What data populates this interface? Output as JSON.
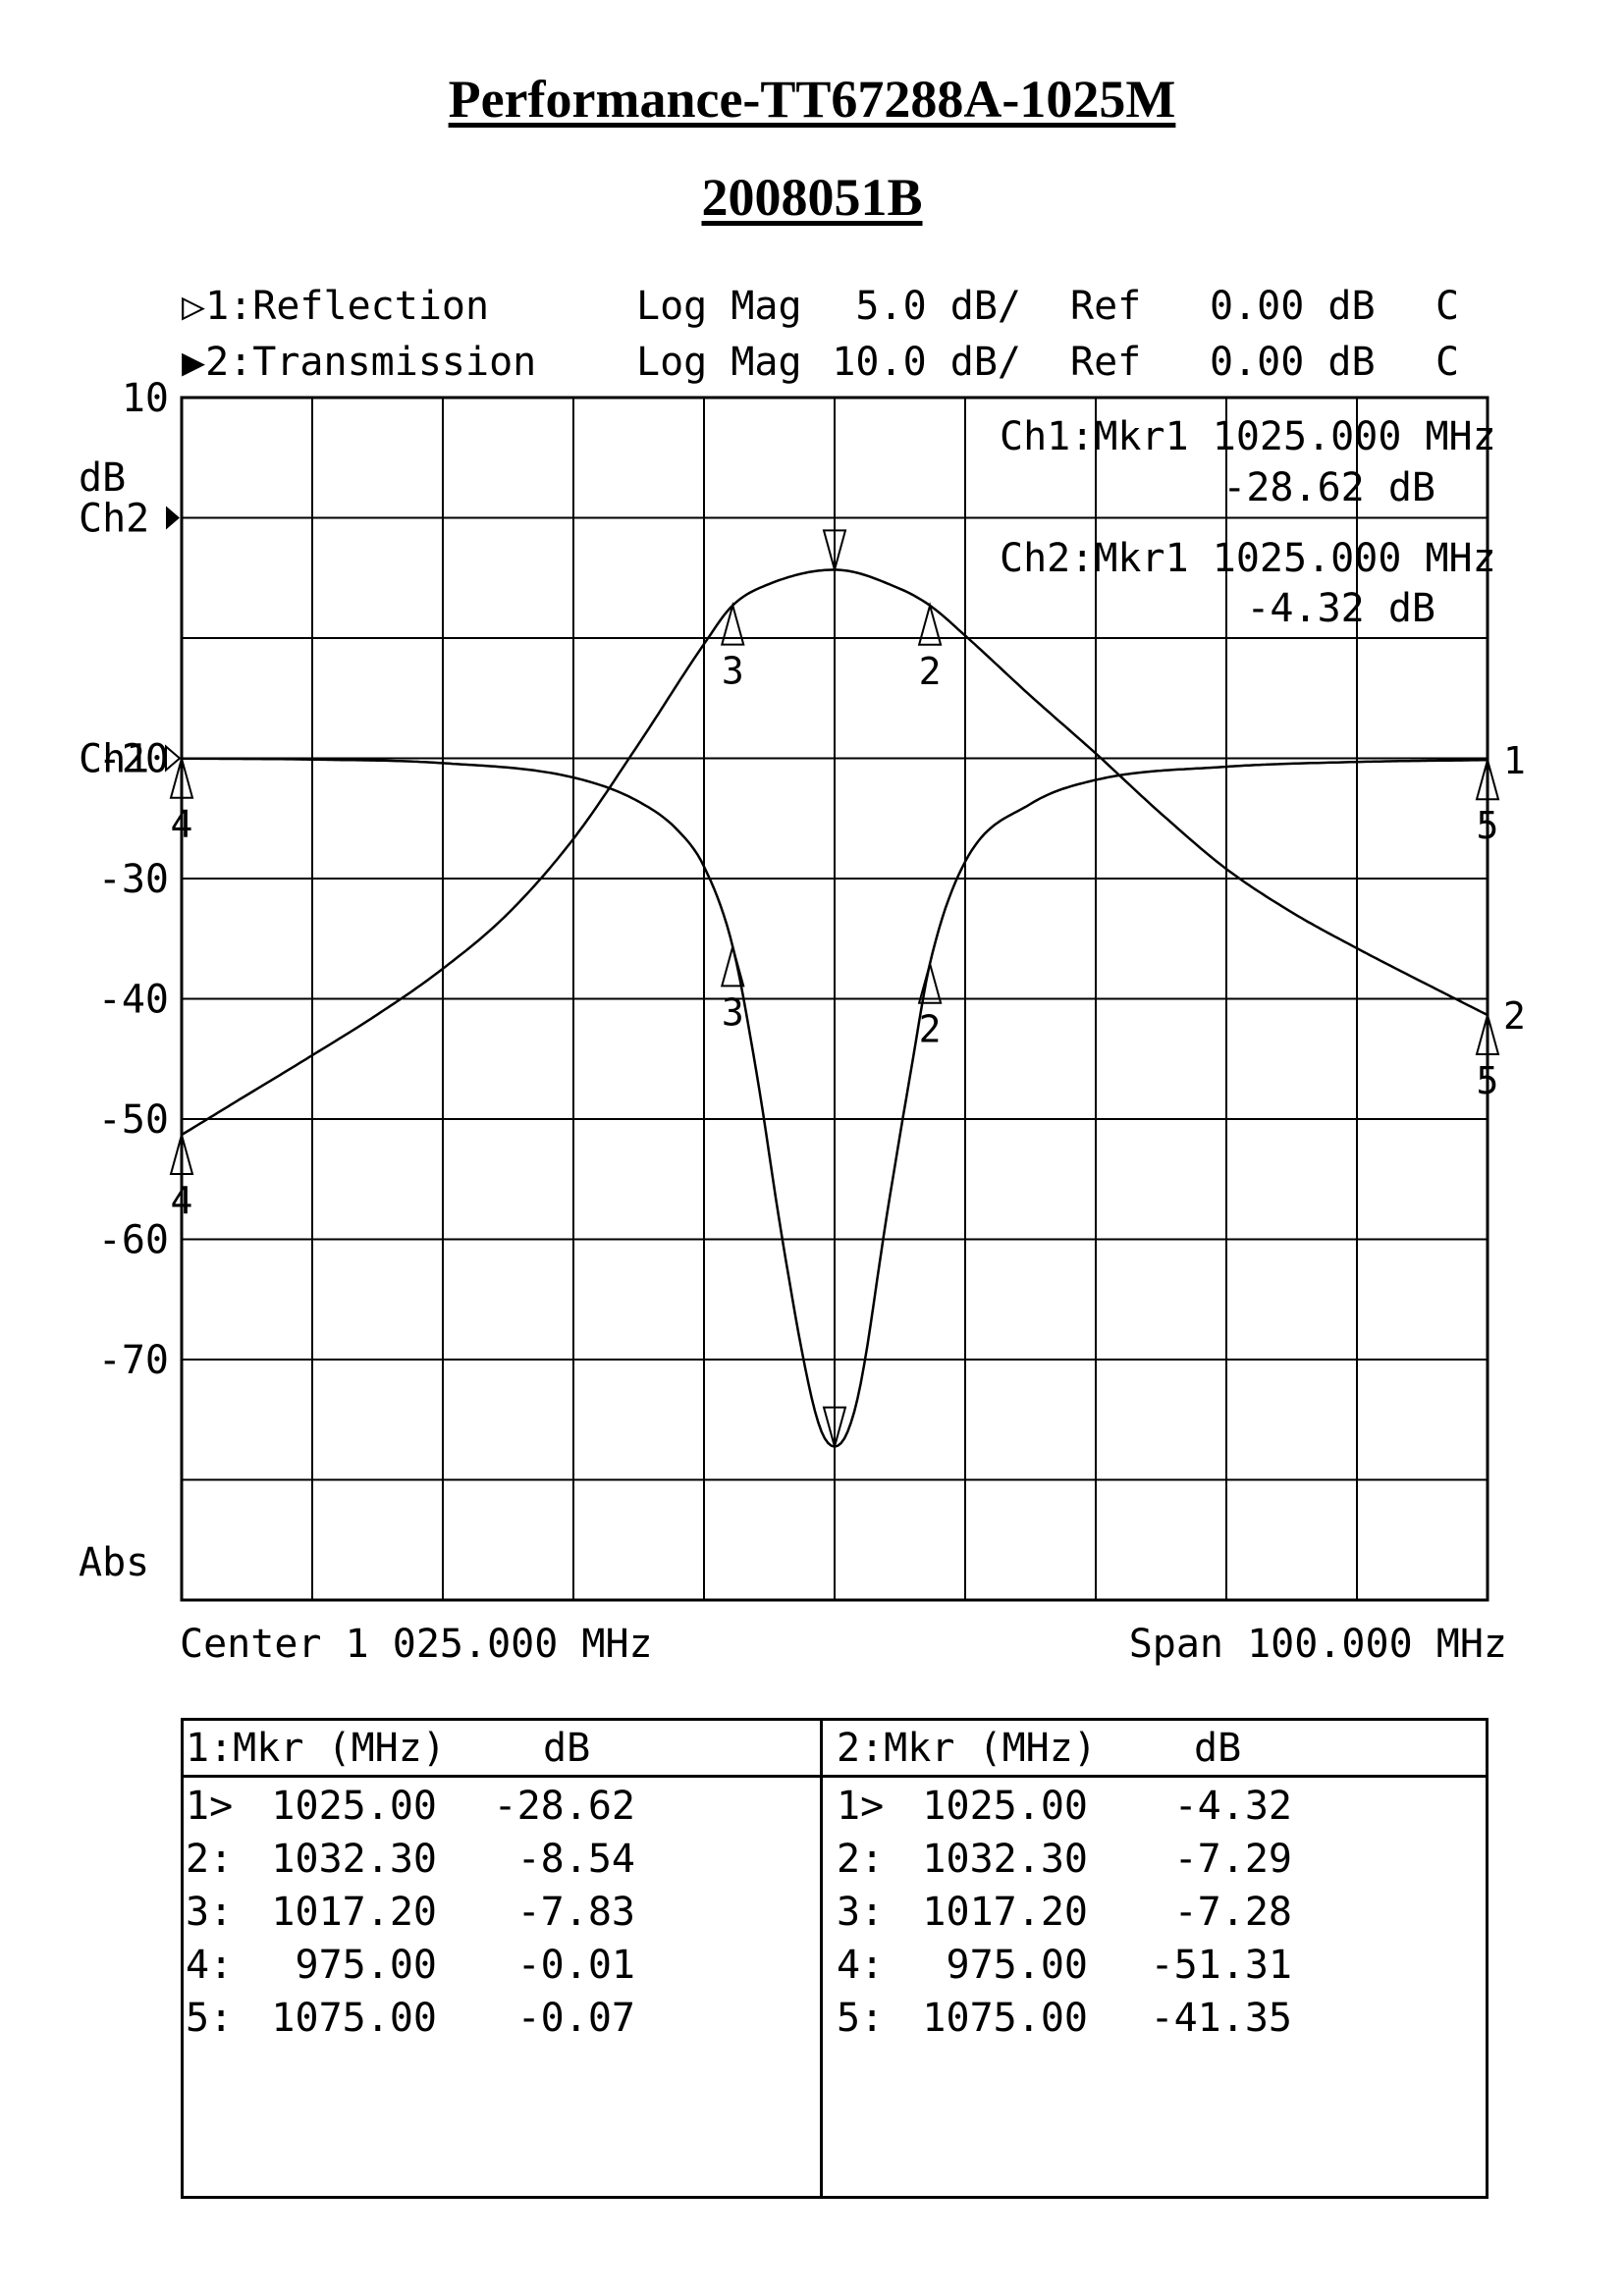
{
  "header": {
    "title": "Performance-TT67288A-1025M",
    "subtitle": "2008051B"
  },
  "channels": [
    {
      "label": "▷1:Reflection",
      "format": "Log Mag",
      "scale": "5.0 dB/",
      "ref_label": "Ref",
      "ref": "0.00 dB",
      "flag": "C"
    },
    {
      "label": "▶2:Transmission",
      "format": "Log Mag",
      "scale": "10.0 dB/",
      "ref_label": "Ref",
      "ref": "0.00 dB",
      "flag": "C"
    }
  ],
  "marker_readouts": [
    {
      "line1": "Ch1:Mkr1 1025.000 MHz",
      "line2": "-28.62 dB"
    },
    {
      "line1": "Ch2:Mkr1 1025.000 MHz",
      "line2": "-4.32 dB"
    }
  ],
  "axis": {
    "unit_label": "dB",
    "abs_label": "Abs",
    "ch2_ref_label": "Ch2",
    "ch1_ref_label": "Ch1",
    "y_ticks": [
      {
        "label": "10",
        "value": 10
      },
      {
        "label": "-20",
        "value": -20
      },
      {
        "label": "-30",
        "value": -30
      },
      {
        "label": "-40",
        "value": -40
      },
      {
        "label": "-50",
        "value": -50
      },
      {
        "label": "-60",
        "value": -60
      },
      {
        "label": "-70",
        "value": -70
      }
    ],
    "center_label": "Center 1 025.000 MHz",
    "span_label": "Span 100.000 MHz"
  },
  "chart_data": {
    "type": "line",
    "x_unit": "MHz",
    "xlim": [
      975,
      1075
    ],
    "grid": true,
    "series": [
      {
        "name": "1:Reflection",
        "scale_db_per_div": 5.0,
        "ref_db": 0.0,
        "x": [
          975,
          985,
          995,
          1005,
          1010,
          1013,
          1015,
          1017.2,
          1019,
          1021,
          1023,
          1024,
          1025,
          1026,
          1027,
          1029,
          1031,
          1032.3,
          1035,
          1040,
          1045,
          1055,
          1065,
          1075
        ],
        "y": [
          -0.01,
          -0.05,
          -0.2,
          -0.8,
          -1.8,
          -3.0,
          -4.5,
          -7.83,
          -13.0,
          -20.0,
          -26.0,
          -28.0,
          -28.62,
          -28.0,
          -26.0,
          -19.0,
          -12.5,
          -8.54,
          -4.3,
          -1.9,
          -0.9,
          -0.35,
          -0.15,
          -0.07
        ]
      },
      {
        "name": "2:Transmission",
        "scale_db_per_div": 10.0,
        "ref_db": 0.0,
        "x": [
          975,
          980,
          985,
          990,
          995,
          1000,
          1005,
          1010,
          1015,
          1017.2,
          1020,
          1025,
          1030,
          1032.3,
          1035,
          1040,
          1045,
          1050,
          1055,
          1060,
          1065,
          1070,
          1075
        ],
        "y": [
          -51.31,
          -48.0,
          -44.7,
          -41.3,
          -37.5,
          -32.9,
          -26.7,
          -18.8,
          -10.5,
          -7.28,
          -5.5,
          -4.32,
          -5.9,
          -7.29,
          -9.8,
          -14.8,
          -19.6,
          -24.6,
          -29.2,
          -32.8,
          -35.8,
          -38.6,
          -41.35
        ]
      }
    ],
    "markers": [
      {
        "n": "1",
        "mhz": 1025.0
      },
      {
        "n": "2",
        "mhz": 1032.3
      },
      {
        "n": "3",
        "mhz": 1017.2
      },
      {
        "n": "4",
        "mhz": 975.0
      },
      {
        "n": "5",
        "mhz": 1075.0
      }
    ]
  },
  "marker_table": {
    "columns": [
      {
        "header_mkr": "1:Mkr (MHz)",
        "header_db": "dB",
        "rows": [
          {
            "idx": "1>",
            "freq": "1025.00",
            "db": "-28.62"
          },
          {
            "idx": "2:",
            "freq": "1032.30",
            "db": "-8.54"
          },
          {
            "idx": "3:",
            "freq": "1017.20",
            "db": "-7.83"
          },
          {
            "idx": "4:",
            "freq": "975.00",
            "db": "-0.01"
          },
          {
            "idx": "5:",
            "freq": "1075.00",
            "db": "-0.07"
          }
        ]
      },
      {
        "header_mkr": "2:Mkr (MHz)",
        "header_db": "dB",
        "rows": [
          {
            "idx": "1>",
            "freq": "1025.00",
            "db": "-4.32"
          },
          {
            "idx": "2:",
            "freq": "1032.30",
            "db": "-7.29"
          },
          {
            "idx": "3:",
            "freq": "1017.20",
            "db": "-7.28"
          },
          {
            "idx": "4:",
            "freq": "975.00",
            "db": "-51.31"
          },
          {
            "idx": "5:",
            "freq": "1075.00",
            "db": "-41.35"
          }
        ]
      }
    ]
  }
}
